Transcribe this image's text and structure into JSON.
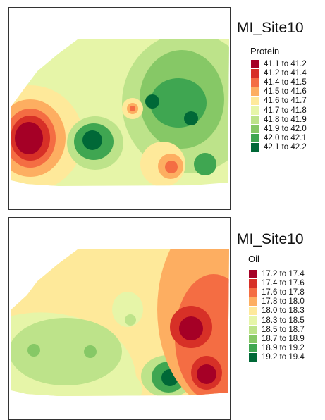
{
  "maps": [
    {
      "title": "MI_Site10",
      "variable": "Protein",
      "legend": [
        {
          "label": "41.1 to 41.2",
          "color": "#a50026"
        },
        {
          "label": "41.2 to 41.4",
          "color": "#d73027"
        },
        {
          "label": "41.4 to 41.5",
          "color": "#f46d43"
        },
        {
          "label": "41.5 to 41.6",
          "color": "#fdae61"
        },
        {
          "label": "41.6 to 41.7",
          "color": "#fee99a"
        },
        {
          "label": "41.7 to 41.8",
          "color": "#e6f5a8"
        },
        {
          "label": "41.8 to 41.9",
          "color": "#bde38a"
        },
        {
          "label": "41.9 to 42.0",
          "color": "#86c866"
        },
        {
          "label": "42.0 to 42.1",
          "color": "#3fa651"
        },
        {
          "label": "42.1 to 42.2",
          "color": "#006837"
        }
      ]
    },
    {
      "title": "MI_Site10",
      "variable": "Oil",
      "legend": [
        {
          "label": "17.2 to 17.4",
          "color": "#a50026"
        },
        {
          "label": "17.4 to 17.6",
          "color": "#d73027"
        },
        {
          "label": "17.6 to 17.8",
          "color": "#f46d43"
        },
        {
          "label": "17.8 to 18.0",
          "color": "#fdae61"
        },
        {
          "label": "18.0 to 18.3",
          "color": "#fee99a"
        },
        {
          "label": "18.3 to 18.5",
          "color": "#e6f5a8"
        },
        {
          "label": "18.5 to 18.7",
          "color": "#bde38a"
        },
        {
          "label": "18.7 to 18.9",
          "color": "#86c866"
        },
        {
          "label": "18.9 to 19.2",
          "color": "#3fa651"
        },
        {
          "label": "19.2 to 19.4",
          "color": "#006837"
        }
      ]
    }
  ]
}
